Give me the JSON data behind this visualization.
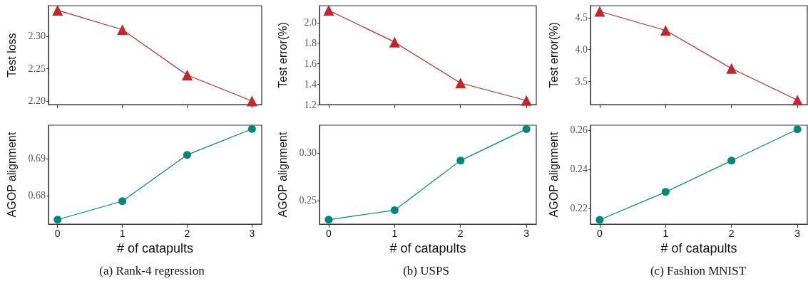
{
  "chart_data": [
    {
      "type": "line",
      "ylabel": "Test loss",
      "x": [
        0,
        1,
        2,
        3
      ],
      "series": [
        {
          "color": "#c0282d",
          "values": [
            2.34,
            2.31,
            2.24,
            2.2
          ]
        }
      ],
      "xlim": [
        -0.14,
        3.15
      ],
      "xticks": [
        0,
        1,
        2,
        3
      ],
      "ylim": [
        2.1945,
        2.347
      ],
      "yticks": [
        {
          "value": 2.2,
          "label": "2.20"
        },
        {
          "value": 2.25,
          "label": "2.25"
        },
        {
          "value": 2.3,
          "label": "2.30"
        }
      ],
      "tick_labels": "y",
      "marker": "triangle"
    },
    {
      "type": "line",
      "ylabel": "Test error(%)",
      "x": [
        0,
        1,
        2,
        3
      ],
      "series": [
        {
          "color": "#c0282d",
          "values": [
            2.12,
            1.81,
            1.41,
            1.24
          ]
        }
      ],
      "xlim": [
        -0.14,
        3.15
      ],
      "xticks": [
        0,
        1,
        2,
        3
      ],
      "ylim": [
        1.2,
        2.165
      ],
      "yticks": [
        1.2,
        1.4,
        1.6,
        1.8,
        {
          "value": 2.0,
          "label": "2.0"
        }
      ],
      "tick_labels": "y",
      "marker": "triangle"
    },
    {
      "type": "line",
      "ylabel": "Test error(%)",
      "x": [
        0,
        1,
        2,
        3
      ],
      "series": [
        {
          "color": "#c0282d",
          "values": [
            4.6,
            4.3,
            3.7,
            3.2
          ]
        }
      ],
      "xlim": [
        -0.14,
        3.15
      ],
      "xticks": [
        0,
        1,
        2,
        3
      ],
      "ylim": [
        3.13,
        4.69
      ],
      "yticks": [
        3.5,
        {
          "value": 4.0,
          "label": "4.0"
        },
        4.5
      ],
      "tick_labels": "y",
      "marker": "triangle"
    },
    {
      "type": "line",
      "ylabel": "AGOP alignment",
      "xlabel": "# of catapults",
      "annotations": [
        "(a) Rank-4 regression"
      ],
      "x": [
        0,
        1,
        2,
        3
      ],
      "series": [
        {
          "color": "#00877a",
          "values": [
            0.6735,
            0.6785,
            0.691,
            0.698
          ]
        }
      ],
      "xlim": [
        -0.14,
        3.15
      ],
      "xticks": [
        0,
        1,
        2,
        3
      ],
      "ylim": [
        0.6723,
        0.699
      ],
      "yticks": [
        0.68,
        0.69
      ],
      "marker": "circle"
    },
    {
      "type": "line",
      "ylabel": "AGOP alignment",
      "xlabel": "# of catapults",
      "annotations": [
        "(b) USPS"
      ],
      "x": [
        0,
        1,
        2,
        3
      ],
      "series": [
        {
          "color": "#00877a",
          "values": [
            0.23,
            0.24,
            0.292,
            0.325
          ]
        }
      ],
      "xlim": [
        -0.14,
        3.15
      ],
      "xticks": [
        0,
        1,
        2,
        3
      ],
      "ylim": [
        0.2254,
        0.329
      ],
      "yticks": [
        0.25,
        {
          "value": 0.3,
          "label": "0.30"
        }
      ],
      "marker": "circle"
    },
    {
      "type": "line",
      "ylabel": "AGOP alignment",
      "xlabel": "# of catapults",
      "annotations": [
        "(c) Fashion MNIST"
      ],
      "x": [
        0,
        1,
        2,
        3
      ],
      "series": [
        {
          "color": "#00877a",
          "values": [
            0.2142,
            0.2284,
            0.2444,
            0.2604
          ]
        }
      ],
      "xlim": [
        -0.14,
        3.15
      ],
      "xticks": [
        0,
        1,
        2,
        3
      ],
      "ylim": [
        0.212,
        0.2625
      ],
      "yticks": [
        0.22,
        0.24,
        0.26
      ],
      "marker": "circle"
    }
  ]
}
